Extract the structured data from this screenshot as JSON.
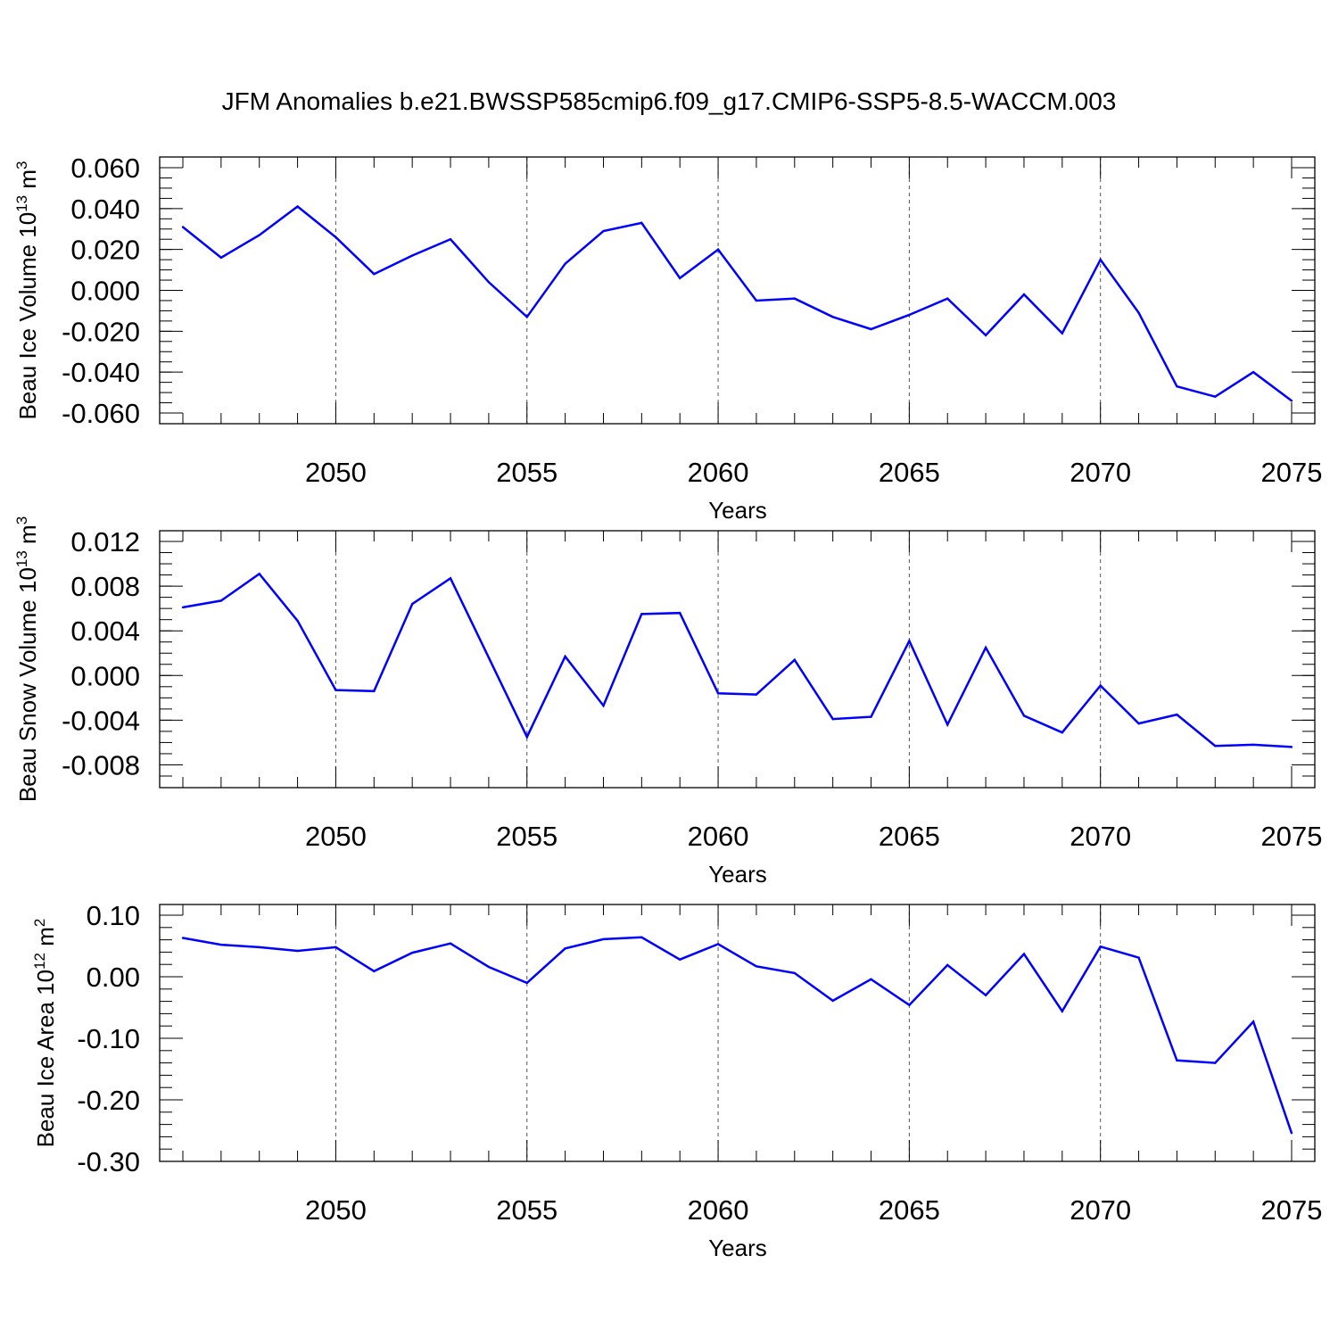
{
  "title": "JFM Anomalies b.e21.BWSSP585cmip6.f09_g17.CMIP6-SSP5-8.5-WACCM.003",
  "line_color": "#0000ff",
  "chart_data": [
    {
      "type": "line",
      "ylabel_main": "Beau Ice Volume 10",
      "ylabel_exp": "13",
      "ylabel_unit": " m",
      "ylabel_unit_exp": "3",
      "xlabel": "Years",
      "xlim": [
        2046,
        2075
      ],
      "ylim": [
        -0.06,
        0.06
      ],
      "ytick_values": [
        0.06,
        0.04,
        0.02,
        0.0,
        -0.02,
        -0.04,
        -0.06
      ],
      "ytick_labels": [
        "0.060",
        "0.040",
        "0.020",
        "0.000",
        "-0.020",
        "-0.040",
        "-0.060"
      ],
      "yminor_step": 0.005,
      "xtick_values": [
        2050,
        2055,
        2060,
        2065,
        2070,
        2075
      ],
      "xtick_labels": [
        "2050",
        "2055",
        "2060",
        "2065",
        "2070",
        "2075"
      ],
      "x": [
        2046,
        2047,
        2048,
        2049,
        2050,
        2051,
        2052,
        2053,
        2054,
        2055,
        2056,
        2057,
        2058,
        2059,
        2060,
        2061,
        2062,
        2063,
        2064,
        2065,
        2066,
        2067,
        2068,
        2069,
        2070,
        2071,
        2072,
        2073,
        2074,
        2075
      ],
      "values": [
        0.031,
        0.016,
        0.027,
        0.041,
        0.026,
        0.008,
        0.017,
        0.025,
        0.004,
        -0.013,
        0.013,
        0.029,
        0.033,
        0.006,
        0.02,
        -0.005,
        -0.004,
        -0.013,
        -0.019,
        -0.012,
        -0.004,
        -0.022,
        -0.002,
        -0.021,
        0.015,
        -0.011,
        -0.047,
        -0.052,
        -0.04,
        -0.054
      ]
    },
    {
      "type": "line",
      "ylabel_main": "Beau Snow Volume 10",
      "ylabel_exp": "13",
      "ylabel_unit": " m",
      "ylabel_unit_exp": "3",
      "xlabel": "Years",
      "xlim": [
        2046,
        2075
      ],
      "ylim": [
        -0.009,
        0.012
      ],
      "ytick_values": [
        0.012,
        0.008,
        0.004,
        0.0,
        -0.004,
        -0.008
      ],
      "ytick_labels": [
        "0.012",
        "0.008",
        "0.004",
        "0.000",
        "-0.004",
        "-0.008"
      ],
      "yminor_step": 0.001,
      "xtick_values": [
        2050,
        2055,
        2060,
        2065,
        2070,
        2075
      ],
      "xtick_labels": [
        "2050",
        "2055",
        "2060",
        "2065",
        "2070",
        "2075"
      ],
      "x": [
        2046,
        2047,
        2048,
        2049,
        2050,
        2051,
        2052,
        2053,
        2054,
        2055,
        2056,
        2057,
        2058,
        2059,
        2060,
        2061,
        2062,
        2063,
        2064,
        2065,
        2066,
        2067,
        2068,
        2069,
        2070,
        2071,
        2072,
        2073,
        2074,
        2075
      ],
      "values": [
        0.0061,
        0.0067,
        0.0091,
        0.0049,
        -0.0013,
        -0.0014,
        0.0064,
        0.0087,
        0.0016,
        -0.0055,
        0.0017,
        -0.0027,
        0.0055,
        0.0056,
        -0.0016,
        -0.0017,
        0.0014,
        -0.0039,
        -0.0037,
        0.0031,
        -0.0044,
        0.0025,
        -0.0036,
        -0.0051,
        -0.0009,
        -0.0043,
        -0.0035,
        -0.0063,
        -0.0062,
        -0.0064
      ]
    },
    {
      "type": "line",
      "ylabel_main": "Beau Ice Area 10",
      "ylabel_exp": "12",
      "ylabel_unit": " m",
      "ylabel_unit_exp": "2",
      "xlabel": "Years",
      "xlim": [
        2046,
        2075
      ],
      "ylim": [
        -0.3,
        0.1
      ],
      "ytick_values": [
        0.1,
        0.0,
        -0.1,
        -0.2,
        -0.3
      ],
      "ytick_labels": [
        "0.10",
        "0.00",
        "-0.10",
        "-0.20",
        "-0.30"
      ],
      "yminor_step": 0.02,
      "xtick_values": [
        2050,
        2055,
        2060,
        2065,
        2070,
        2075
      ],
      "xtick_labels": [
        "2050",
        "2055",
        "2060",
        "2065",
        "2070",
        "2075"
      ],
      "x": [
        2046,
        2047,
        2048,
        2049,
        2050,
        2051,
        2052,
        2053,
        2054,
        2055,
        2056,
        2057,
        2058,
        2059,
        2060,
        2061,
        2062,
        2063,
        2064,
        2065,
        2066,
        2067,
        2068,
        2069,
        2070,
        2071,
        2072,
        2073,
        2074,
        2075
      ],
      "values": [
        0.063,
        0.052,
        0.048,
        0.042,
        0.048,
        0.009,
        0.039,
        0.054,
        0.016,
        -0.01,
        0.046,
        0.061,
        0.064,
        0.028,
        0.053,
        0.017,
        0.006,
        -0.039,
        -0.004,
        -0.046,
        0.019,
        -0.03,
        0.037,
        -0.056,
        0.049,
        0.031,
        -0.136,
        -0.14,
        -0.073,
        -0.254
      ]
    }
  ]
}
